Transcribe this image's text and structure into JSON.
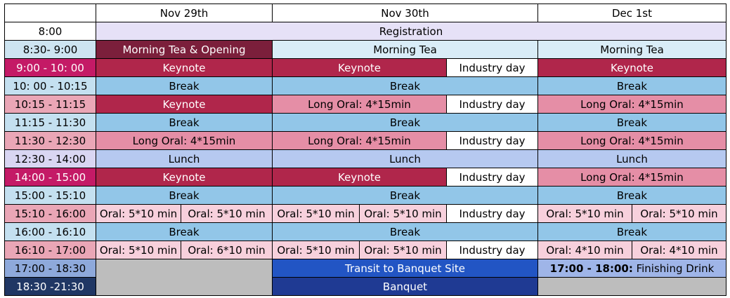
{
  "headers": {
    "corner": "",
    "day1": "Nov 29th",
    "day2": "Nov 30th",
    "day3": "Dec 1st"
  },
  "rows": {
    "r1": {
      "time": "8:00",
      "registration": "Registration"
    },
    "r2": {
      "time": "8:30- 9:00",
      "d1": "Morning Tea & Opening",
      "d2": "Morning Tea",
      "d3": "Morning Tea"
    },
    "r3": {
      "time": "9:00 - 10: 00",
      "d1": "Keynote",
      "d2a": "Keynote",
      "d2b": "Industry day",
      "d3": "Keynote"
    },
    "r4": {
      "time": "10: 00 - 10:15",
      "d1": "Break",
      "d2": "Break",
      "d3": "Break"
    },
    "r5": {
      "time": "10:15 - 11:15",
      "d1": "Keynote",
      "d2a": "Long Oral: 4*15min",
      "d2b": "Industry day",
      "d3": "Long Oral: 4*15min"
    },
    "r6": {
      "time": "11:15 - 11:30",
      "d1": "Break",
      "d2": "Break",
      "d3": "Break"
    },
    "r7": {
      "time": "11:30 - 12:30",
      "d1": "Long Oral: 4*15min",
      "d2a": "Long Oral: 4*15min",
      "d2b": "Industry day",
      "d3": "Long Oral: 4*15min"
    },
    "r8": {
      "time": "12:30 - 14:00",
      "d1": "Lunch",
      "d2": "Lunch",
      "d3": "Lunch"
    },
    "r9": {
      "time": "14:00 - 15:00",
      "d1": "Keynote",
      "d2a": "Keynote",
      "d2b": "Industry day",
      "d3": "Long Oral: 4*15min"
    },
    "r10": {
      "time": "15:00 - 15:10",
      "d1": "Break",
      "d2": "Break",
      "d3": "Break"
    },
    "r11": {
      "time": "15:10 - 16:00",
      "d1a": "Oral: 5*10 min",
      "d1b": "Oral: 5*10 min",
      "d2a": "Oral: 5*10 min",
      "d2b": "Oral: 5*10 min",
      "d2c": "Industry day",
      "d3a": "Oral: 5*10 min",
      "d3b": "Oral: 5*10 min"
    },
    "r12": {
      "time": "16:00 - 16:10",
      "d1": "Break",
      "d2": "Break",
      "d3": "Break"
    },
    "r13": {
      "time": "16:10 - 17:00",
      "d1a": "Oral: 5*10 min",
      "d1b": "Oral: 6*10 min",
      "d2a": "Oral: 5*10 min",
      "d2b": "Oral: 5*10 min",
      "d2c": "Industry day",
      "d3a": "Oral: 4*10 min",
      "d3b": "Oral: 4*10 min"
    },
    "r14": {
      "time": "17:00 - 18:30",
      "d1": "",
      "d2": "Transit to Banquet Site",
      "d3_bold": "17:00 - 18:00:",
      "d3_rest": " Finishing Drink"
    },
    "r15": {
      "time": "18:30 -21:30",
      "d1": "",
      "d2": "Banquet",
      "d3": ""
    }
  }
}
